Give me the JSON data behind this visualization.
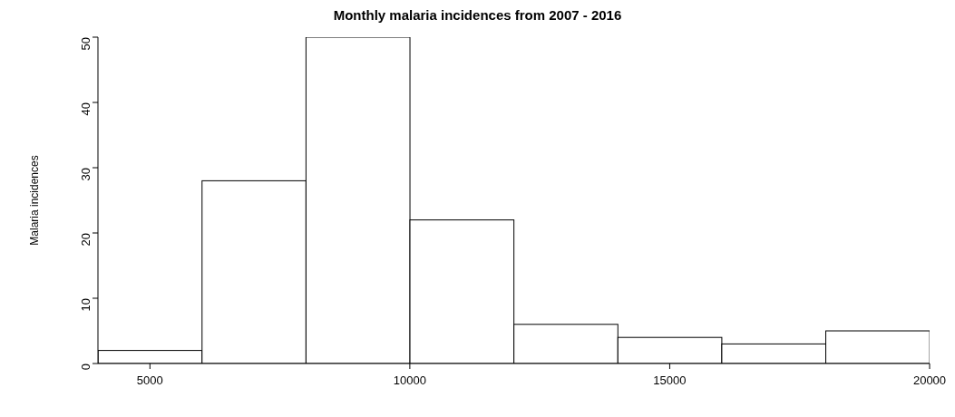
{
  "chart_data": {
    "type": "histogram",
    "title": "Monthly malaria incidences from 2007 - 2016",
    "ylabel": "Malaria incidences",
    "bins": [
      4000,
      6000,
      8000,
      10000,
      12000,
      14000,
      16000,
      18000,
      20000
    ],
    "values": [
      2,
      28,
      50,
      22,
      6,
      4,
      3,
      5
    ],
    "color": "#ffffff",
    "xlim": [
      4000,
      20000
    ],
    "xticks": [
      5000,
      10000,
      15000,
      20000
    ],
    "ylim": [
      0,
      50
    ],
    "yticks": [
      0,
      10,
      20,
      30,
      40,
      50
    ],
    "grid": false,
    "legend": false
  }
}
